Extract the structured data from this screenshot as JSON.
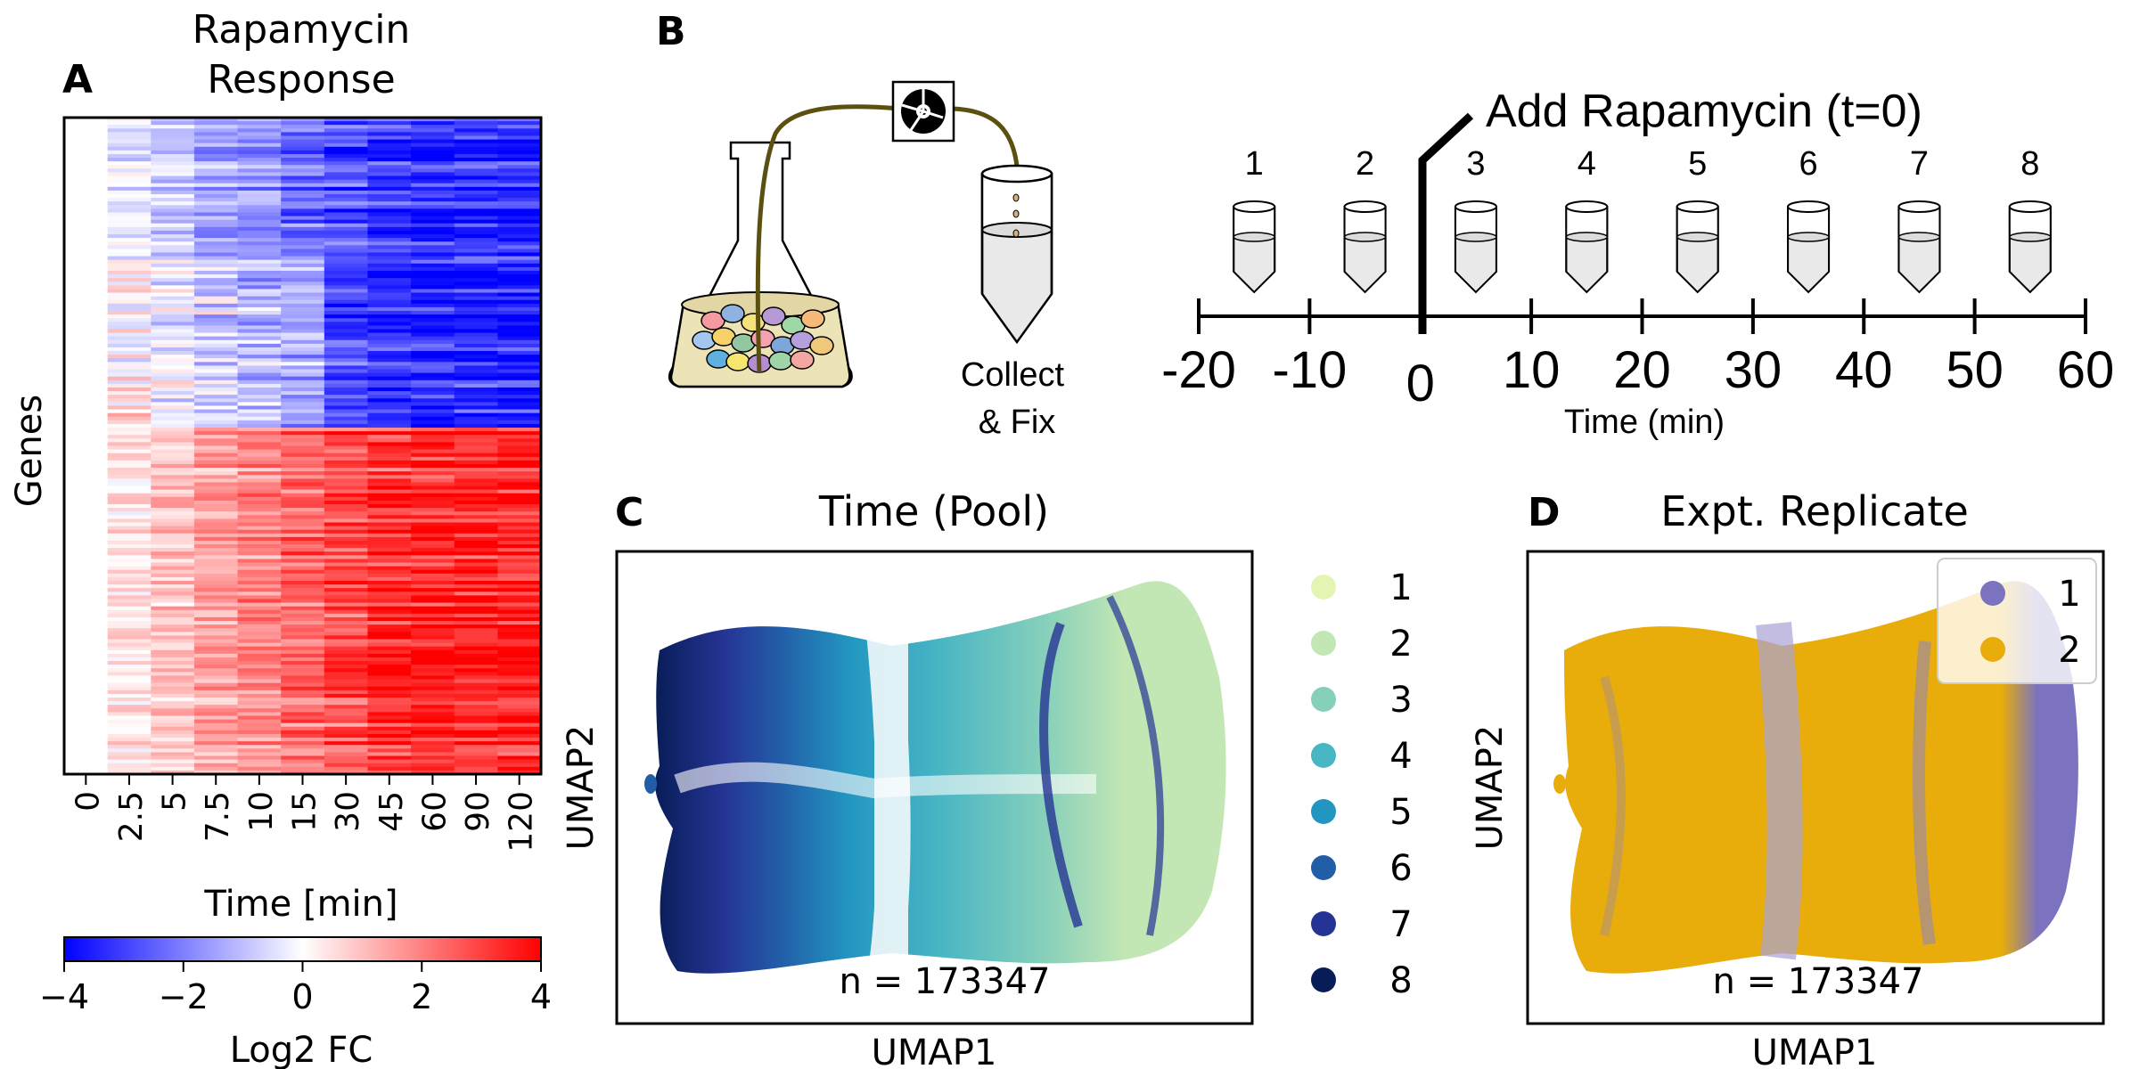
{
  "panels": {
    "A": {
      "label": "A",
      "title_line1": "Rapamycin",
      "title_line2": "Response",
      "ylabel": "Genes",
      "xlabel": "Time [min]",
      "time_ticks": [
        "0",
        "2.5",
        "5",
        "7.5",
        "10",
        "15",
        "30",
        "45",
        "60",
        "90",
        "120"
      ],
      "colorbar_label": "Log2 FC",
      "colorbar_ticks": [
        "−4",
        "−2",
        "0",
        "2",
        "4"
      ],
      "colorbar_range": [
        -4,
        4
      ],
      "colormap": [
        "#0000ff",
        "#ffffff",
        "#ff0000"
      ]
    },
    "B": {
      "label": "B",
      "annotation": "Add Rapamycin (t=0)",
      "collect_line1": "Collect",
      "collect_line2": "& Fix",
      "tube_numbers": [
        "1",
        "2",
        "3",
        "4",
        "5",
        "6",
        "7",
        "8"
      ],
      "axis_ticks": [
        "-20",
        "-10",
        "0",
        "10",
        "20",
        "30",
        "40",
        "50",
        "60"
      ],
      "xlabel": "Time (min)"
    },
    "C": {
      "label": "C",
      "title": "Time (Pool)",
      "xlabel": "UMAP1",
      "ylabel": "UMAP2",
      "n_label": "n = 173347",
      "legend": [
        {
          "label": "1",
          "color": "#e4f4b3"
        },
        {
          "label": "2",
          "color": "#c2e6b4"
        },
        {
          "label": "3",
          "color": "#86cfbb"
        },
        {
          "label": "4",
          "color": "#49b6c4"
        },
        {
          "label": "5",
          "color": "#2296c0"
        },
        {
          "label": "6",
          "color": "#225ea8"
        },
        {
          "label": "7",
          "color": "#253494"
        },
        {
          "label": "8",
          "color": "#081d58"
        }
      ]
    },
    "D": {
      "label": "D",
      "title": "Expt. Replicate",
      "xlabel": "UMAP1",
      "ylabel": "UMAP2",
      "n_label": "n = 173347",
      "legend": [
        {
          "label": "1",
          "color": "#7b73bf"
        },
        {
          "label": "2",
          "color": "#e8ad0b"
        }
      ]
    }
  }
}
